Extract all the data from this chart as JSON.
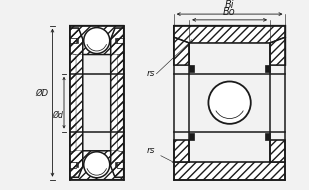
{
  "bg_color": "#f2f2f2",
  "line_color": "#1a1a1a",
  "figsize": [
    3.09,
    1.9
  ],
  "dpi": 100,
  "labels": {
    "phi_D": "ØD",
    "phi_d": "Ød",
    "Bi": "Bi",
    "Bo": "Bo",
    "rs_top": "rs",
    "rs_bottom": "rs"
  },
  "lw_main": 1.1,
  "lw_thin": 0.55,
  "lw_dim": 0.6
}
